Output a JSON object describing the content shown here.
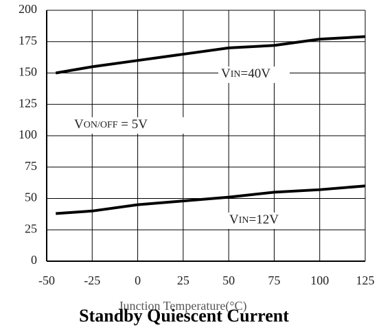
{
  "chart_data": {
    "type": "line",
    "title": "Standby Quiescent Current",
    "x_label": "Junction Temperature(°C)",
    "x": [
      -45,
      -25,
      0,
      25,
      50,
      75,
      100,
      125
    ],
    "series": [
      {
        "color": "#000000",
        "values": [
          150,
          155,
          160,
          165,
          170,
          172,
          177,
          179
        ]
      },
      {
        "color": "#000000",
        "values": [
          38,
          40,
          45,
          48,
          51,
          55,
          57,
          60
        ]
      }
    ],
    "annotations": [
      {
        "parts": [
          "V",
          "IN",
          "=40V"
        ]
      },
      {
        "parts": [
          "V",
          "IN",
          "=12V"
        ]
      },
      {
        "parts": [
          "V",
          "ON/OFF",
          " = 5V"
        ]
      }
    ],
    "xlim": [
      -50,
      125
    ],
    "xticks": [
      -50,
      -25,
      0,
      25,
      50,
      75,
      100,
      125
    ],
    "ylim": [
      0,
      200
    ],
    "yticks": [
      0,
      25,
      50,
      75,
      100,
      125,
      150,
      175,
      200
    ],
    "grid": true
  }
}
